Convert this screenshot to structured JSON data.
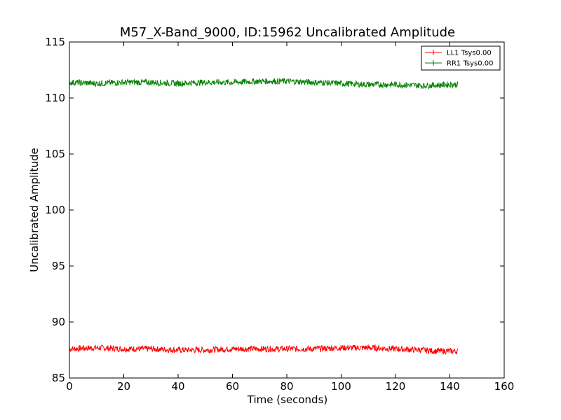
{
  "chart_data": {
    "type": "line",
    "title": "M57_X-Band_9000, ID:15962 Uncalibrated Amplitude",
    "xlabel": "Time (seconds)",
    "ylabel": "Uncalibrated Amplitude",
    "xlim": [
      0,
      160
    ],
    "ylim": [
      85,
      115
    ],
    "xticks": [
      "0",
      "20",
      "40",
      "60",
      "80",
      "100",
      "120",
      "140",
      "160"
    ],
    "yticks": [
      "85",
      "90",
      "95",
      "100",
      "105",
      "110",
      "115"
    ],
    "grid": false,
    "legend_position": "top-right",
    "series": [
      {
        "name": "LL1 Tsys0.00",
        "color": "#ff0000",
        "x": [
          0,
          10,
          20,
          30,
          40,
          50,
          60,
          70,
          80,
          90,
          100,
          110,
          120,
          130,
          135,
          140,
          143
        ],
        "y": [
          87.6,
          87.7,
          87.6,
          87.6,
          87.5,
          87.5,
          87.6,
          87.6,
          87.6,
          87.6,
          87.7,
          87.7,
          87.6,
          87.5,
          87.4,
          87.4,
          87.4
        ]
      },
      {
        "name": "RR1 Tsys0.00",
        "color": "#008000",
        "x": [
          0,
          10,
          20,
          30,
          40,
          50,
          60,
          70,
          80,
          90,
          100,
          110,
          120,
          130,
          140,
          143
        ],
        "y": [
          111.4,
          111.3,
          111.4,
          111.4,
          111.3,
          111.4,
          111.4,
          111.5,
          111.5,
          111.4,
          111.3,
          111.2,
          111.2,
          111.1,
          111.2,
          111.2
        ]
      }
    ]
  }
}
